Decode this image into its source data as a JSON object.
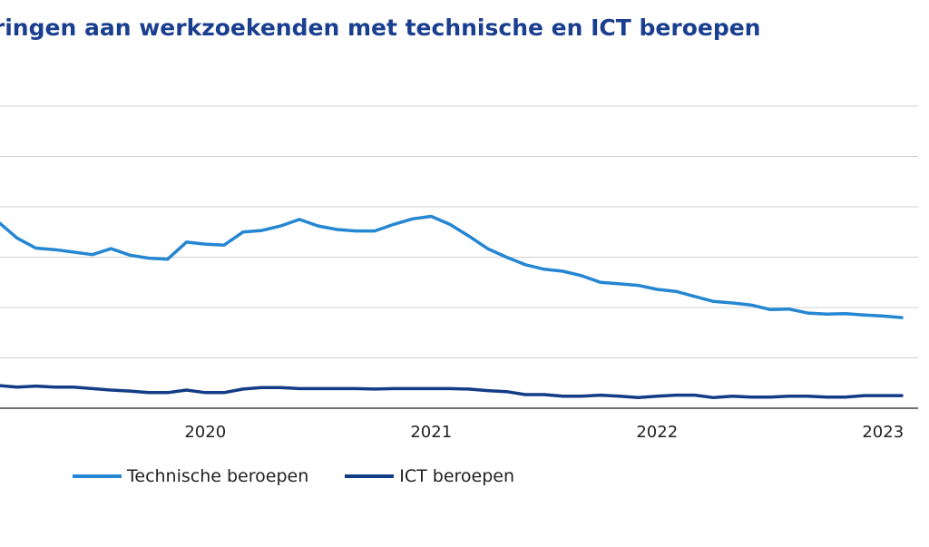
{
  "chart_data": {
    "type": "line",
    "title": "Uitkeringen aan werkzoekenden met technische en ICT beroepen",
    "title_visible": "keringen aan werkzoekenden met technische en ICT beroepen",
    "xlabel": "",
    "ylabel": "",
    "x_ticks": [
      "2020",
      "2021",
      "2022",
      "2023"
    ],
    "ylim": [
      0,
      6
    ],
    "grid": true,
    "legend_position": "bottom-left",
    "series": [
      {
        "name": "Technische beroepen",
        "color": "#2586d2",
        "values": [
          3.7,
          3.38,
          3.18,
          3.15,
          3.1,
          3.05,
          3.17,
          3.04,
          2.98,
          2.96,
          3.3,
          3.26,
          3.24,
          3.5,
          3.53,
          3.62,
          3.75,
          3.62,
          3.55,
          3.52,
          3.52,
          3.65,
          3.76,
          3.81,
          3.65,
          3.42,
          3.17,
          3.0,
          2.85,
          2.76,
          2.72,
          2.63,
          2.5,
          2.47,
          2.44,
          2.36,
          2.32,
          2.22,
          2.12,
          2.09,
          2.05,
          1.96,
          1.97,
          1.89,
          1.87,
          1.88,
          1.85,
          1.83,
          1.8
        ]
      },
      {
        "name": "ICT beroepen",
        "color": "#123c86",
        "values": [
          0.45,
          0.42,
          0.44,
          0.42,
          0.42,
          0.39,
          0.36,
          0.34,
          0.31,
          0.31,
          0.36,
          0.31,
          0.31,
          0.38,
          0.41,
          0.41,
          0.39,
          0.39,
          0.39,
          0.39,
          0.38,
          0.39,
          0.39,
          0.39,
          0.39,
          0.38,
          0.35,
          0.33,
          0.27,
          0.27,
          0.24,
          0.24,
          0.26,
          0.24,
          0.21,
          0.24,
          0.26,
          0.26,
          0.21,
          0.24,
          0.22,
          0.22,
          0.24,
          0.24,
          0.22,
          0.22,
          0.25,
          0.25,
          0.25
        ]
      }
    ]
  }
}
